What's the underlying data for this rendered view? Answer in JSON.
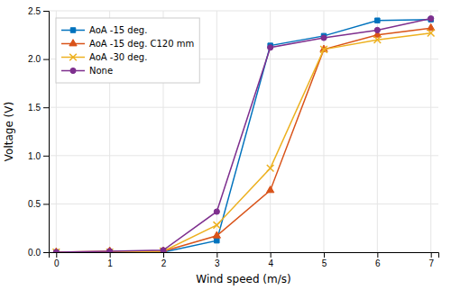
{
  "chart_data": {
    "type": "line",
    "x": [
      0,
      1,
      2,
      3,
      4,
      5,
      6,
      7
    ],
    "series": [
      {
        "name": "AoA -15 deg.",
        "color": "#0072bd",
        "marker": "square",
        "values": [
          0.0,
          0.0,
          0.0,
          0.12,
          2.14,
          2.24,
          2.4,
          2.41
        ]
      },
      {
        "name": "AoA -15 deg. C120 mm",
        "color": "#d95319",
        "marker": "triangle",
        "values": [
          0.0,
          0.01,
          0.01,
          0.17,
          0.64,
          2.1,
          2.25,
          2.32
        ]
      },
      {
        "name": "AoA -30 deg.",
        "color": "#edb120",
        "marker": "x",
        "values": [
          0.0,
          0.0,
          0.01,
          0.28,
          0.87,
          2.1,
          2.2,
          2.27
        ]
      },
      {
        "name": "None",
        "color": "#7e2f8e",
        "marker": "circle",
        "values": [
          0.0,
          0.01,
          0.02,
          0.42,
          2.12,
          2.22,
          2.3,
          2.42
        ]
      }
    ],
    "xlabel": "Wind speed (m/s)",
    "ylabel": "Voltage (V)",
    "xlim": [
      -0.14,
      7.14
    ],
    "ylim": [
      0,
      2.5
    ],
    "xticks": [
      0,
      1,
      2,
      3,
      4,
      5,
      6,
      7
    ],
    "yticks": [
      {
        "value": 0,
        "label": "0.0"
      },
      0.5,
      {
        "value": 1.0,
        "label": "1.0"
      },
      1.5,
      {
        "value": 2.0,
        "label": "2.0"
      },
      2.5
    ],
    "grid": true,
    "legend": "upper left"
  }
}
